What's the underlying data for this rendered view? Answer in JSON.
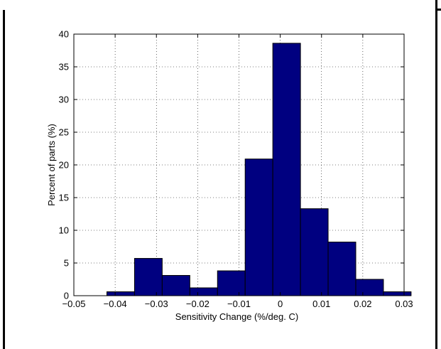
{
  "chart_data": {
    "type": "bar",
    "title": "",
    "xlabel": "Sensitivity Change (%/deg. C)",
    "ylabel": "Percent of parts (%)",
    "xlim": [
      -0.05,
      0.03
    ],
    "ylim": [
      0,
      40
    ],
    "xticks": [
      -0.05,
      -0.04,
      -0.03,
      -0.02,
      -0.01,
      0,
      0.01,
      0.02,
      0.03
    ],
    "xtick_labels": [
      "−0.05",
      "−0.04",
      "−0.03",
      "−0.02",
      "−0.01",
      "0",
      "0.01",
      "0.02",
      "0.03"
    ],
    "yticks": [
      0,
      5,
      10,
      15,
      20,
      25,
      30,
      35,
      40
    ],
    "ytick_labels": [
      "0",
      "5",
      "10",
      "15",
      "20",
      "25",
      "30",
      "35",
      "40"
    ],
    "grid": true,
    "bar_color": "#000080",
    "bins": [
      {
        "x0": -0.042,
        "x1": -0.0353,
        "value": 0.6
      },
      {
        "x0": -0.0353,
        "x1": -0.0286,
        "value": 5.7
      },
      {
        "x0": -0.0286,
        "x1": -0.0219,
        "value": 3.1
      },
      {
        "x0": -0.0219,
        "x1": -0.0152,
        "value": 1.2
      },
      {
        "x0": -0.0152,
        "x1": -0.0085,
        "value": 3.8
      },
      {
        "x0": -0.0085,
        "x1": -0.0018,
        "value": 20.9
      },
      {
        "x0": -0.0018,
        "x1": 0.0049,
        "value": 38.6
      },
      {
        "x0": 0.0049,
        "x1": 0.0116,
        "value": 13.3
      },
      {
        "x0": 0.0116,
        "x1": 0.0183,
        "value": 8.2
      },
      {
        "x0": 0.0183,
        "x1": 0.025,
        "value": 2.5
      },
      {
        "x0": 0.025,
        "x1": 0.0317,
        "value": 0.6
      }
    ]
  }
}
